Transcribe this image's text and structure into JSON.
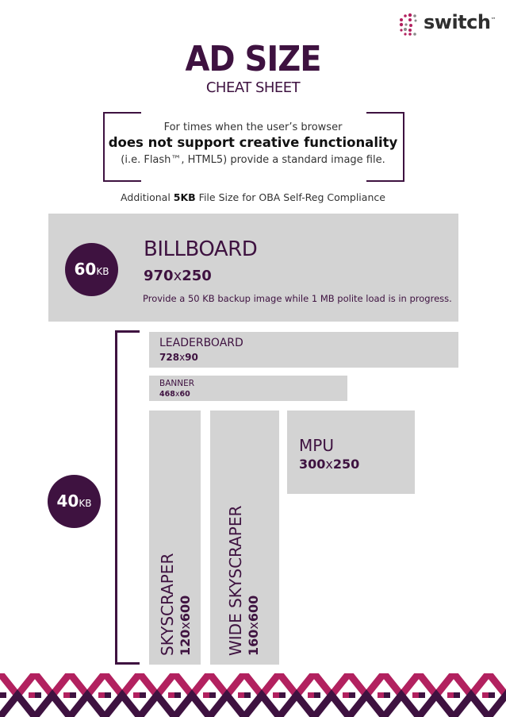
{
  "brand": {
    "name": "switch",
    "trademark": "™",
    "accent": "#3e1240",
    "pink": "#b2215f"
  },
  "header": {
    "title": "AD SIZE",
    "subtitle": "CHEAT SHEET"
  },
  "note": {
    "line1": "For times when the user’s browser",
    "line2": "does not support creative functionality",
    "line3": "(i.e. Flash™, HTML5) provide a standard image file."
  },
  "oba": {
    "prefix": "Additional ",
    "bold": "5KB",
    "suffix": " File Size for OBA Self-Reg Compliance"
  },
  "billboard": {
    "limit_num": "60",
    "limit_unit": "KB",
    "name": "BILLBOARD",
    "w": "970",
    "x": "x",
    "h": "250",
    "desc": "Provide a 50 KB backup image while 1 MB polite load is in progress."
  },
  "group": {
    "limit_num": "40",
    "limit_unit": "KB"
  },
  "leaderboard": {
    "name": "LEADERBOARD",
    "w": "728",
    "x": "x",
    "h": "90"
  },
  "banner": {
    "name": "BANNER",
    "w": "468",
    "x": "x",
    "h": "60"
  },
  "skyscraper": {
    "name": "SKYSCRAPER",
    "w": "120",
    "x": "x",
    "h": "600"
  },
  "wide_skyscraper": {
    "name": "WIDE SKYSCRAPER",
    "w": "160",
    "x": "x",
    "h": "600"
  },
  "mpu": {
    "name": "MPU",
    "w": "300",
    "x": "x",
    "h": "250"
  }
}
